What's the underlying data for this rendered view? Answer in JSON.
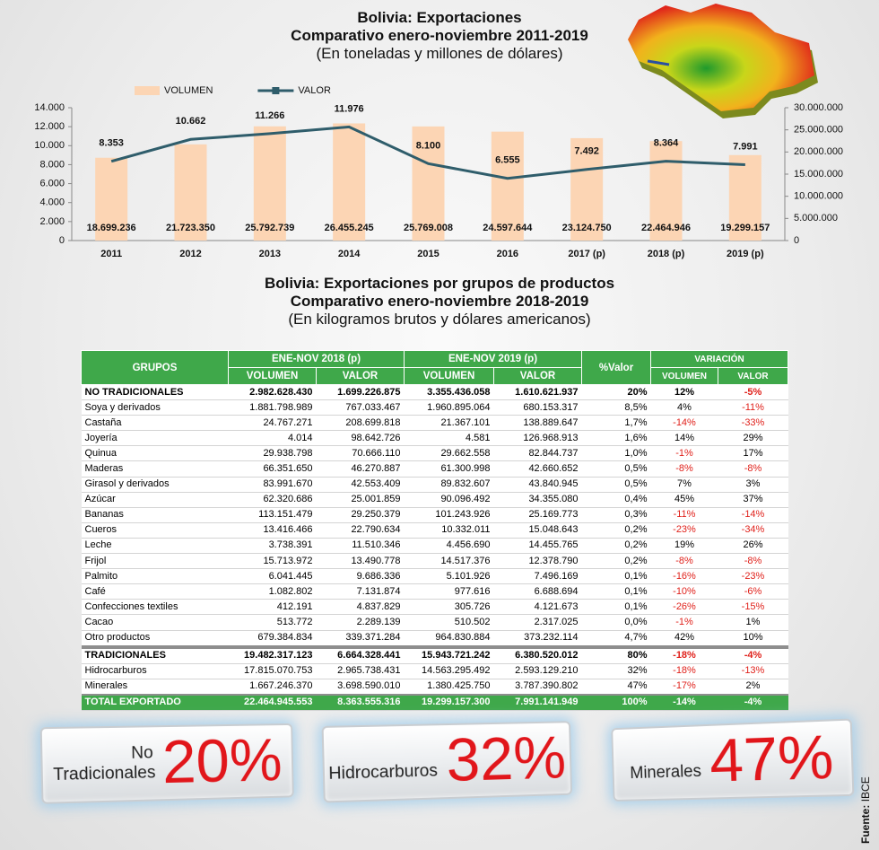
{
  "chart_data": {
    "type": "combo",
    "title": "Bolivia: Exportaciones",
    "subtitle": "Comparativo enero-noviembre 2011-2019",
    "note": "(En toneladas y millones de dólares)",
    "categories": [
      "2011",
      "2012",
      "2013",
      "2014",
      "2015",
      "2016",
      "2017 (p)",
      "2018 (p)",
      "2019 (p)"
    ],
    "series": [
      {
        "name": "VOLUMEN",
        "type": "bar",
        "axis": "y2",
        "color": "#fcd5b4",
        "values": [
          18699236,
          21723350,
          25792739,
          26455245,
          25769008,
          24597644,
          23124750,
          22464946,
          19299157
        ],
        "value_labels": [
          "18.699.236",
          "21.723.350",
          "25.792.739",
          "26.455.245",
          "25.769.008",
          "24.597.644",
          "23.124.750",
          "22.464.946",
          "19.299.157"
        ]
      },
      {
        "name": "VALOR",
        "type": "line",
        "color": "#2f5d6b",
        "values": [
          8353,
          10662,
          11266,
          11976,
          8100,
          6555,
          7492,
          8364,
          7991
        ],
        "value_labels": [
          "8.353",
          "10.662",
          "11.266",
          "11.976",
          "8.100",
          "6.555",
          "7.492",
          "8.364",
          "7.991"
        ]
      }
    ],
    "ylim": [
      0,
      14000
    ],
    "yticks": [
      0,
      {
        "value": 2000,
        "label": "2.000"
      },
      {
        "value": 4000,
        "label": "4.000"
      },
      {
        "value": 6000,
        "label": "6.000"
      },
      {
        "value": 8000,
        "label": "8.000"
      },
      {
        "value": 10000,
        "label": "10.000"
      },
      {
        "value": 12000,
        "label": "12.000"
      },
      {
        "value": 14000,
        "label": "14.000"
      }
    ],
    "y2lim": [
      0,
      30000000
    ],
    "y2ticks": [
      0,
      {
        "value": 5000000,
        "label": "5.000.000"
      },
      {
        "value": 10000000,
        "label": "10.000.000"
      },
      {
        "value": 15000000,
        "label": "15.000.000"
      },
      {
        "value": 20000000,
        "label": "20.000.000"
      },
      {
        "value": 25000000,
        "label": "25.000.000"
      },
      {
        "value": 30000000,
        "label": "30.000.000"
      }
    ],
    "legend": "top-left",
    "grid": false
  },
  "table": {
    "title": "Bolivia: Exportaciones por grupos de productos",
    "subtitle": "Comparativo enero-noviembre 2018-2019",
    "note": "(En kilogramos brutos y dólares americanos)",
    "columns": {
      "group": "GRUPOS",
      "y2018": "ENE-NOV 2018 (p)",
      "y2019": "ENE-NOV 2019 (p)",
      "share": "%Valor",
      "variation": "VARIACIÓN",
      "sub": [
        "VOLUMEN",
        "VALOR",
        "VOLUMEN",
        "VALOR",
        "VOLUMEN",
        "VALOR"
      ]
    },
    "groups": [
      {
        "total": [
          "NO TRADICIONALES",
          "2.982.628.430",
          "1.699.226.875",
          "3.355.436.058",
          "1.610.621.937",
          "20%",
          "12%",
          "-5%"
        ],
        "items": [
          [
            "Soya y derivados",
            "1.881.798.989",
            "767.033.467",
            "1.960.895.064",
            "680.153.317",
            "8,5%",
            "4%",
            "-11%"
          ],
          [
            "Castaña",
            "24.767.271",
            "208.699.818",
            "21.367.101",
            "138.889.647",
            "1,7%",
            "-14%",
            "-33%"
          ],
          [
            "Joyería",
            "4.014",
            "98.642.726",
            "4.581",
            "126.968.913",
            "1,6%",
            "14%",
            "29%"
          ],
          [
            "Quinua",
            "29.938.798",
            "70.666.110",
            "29.662.558",
            "82.844.737",
            "1,0%",
            "-1%",
            "17%"
          ],
          [
            "Maderas",
            "66.351.650",
            "46.270.887",
            "61.300.998",
            "42.660.652",
            "0,5%",
            "-8%",
            "-8%"
          ],
          [
            "Girasol y derivados",
            "83.991.670",
            "42.553.409",
            "89.832.607",
            "43.840.945",
            "0,5%",
            "7%",
            "3%"
          ],
          [
            "Azúcar",
            "62.320.686",
            "25.001.859",
            "90.096.492",
            "34.355.080",
            "0,4%",
            "45%",
            "37%"
          ],
          [
            "Bananas",
            "113.151.479",
            "29.250.379",
            "101.243.926",
            "25.169.773",
            "0,3%",
            "-11%",
            "-14%"
          ],
          [
            "Cueros",
            "13.416.466",
            "22.790.634",
            "10.332.011",
            "15.048.643",
            "0,2%",
            "-23%",
            "-34%"
          ],
          [
            "Leche",
            "3.738.391",
            "11.510.346",
            "4.456.690",
            "14.455.765",
            "0,2%",
            "19%",
            "26%"
          ],
          [
            "Frijol",
            "15.713.972",
            "13.490.778",
            "14.517.376",
            "12.378.790",
            "0,2%",
            "-8%",
            "-8%"
          ],
          [
            "Palmito",
            "6.041.445",
            "9.686.336",
            "5.101.926",
            "7.496.169",
            "0,1%",
            "-16%",
            "-23%"
          ],
          [
            "Café",
            "1.082.802",
            "7.131.874",
            "977.616",
            "6.688.694",
            "0,1%",
            "-10%",
            "-6%"
          ],
          [
            "Confecciones textiles",
            "412.191",
            "4.837.829",
            "305.726",
            "4.121.673",
            "0,1%",
            "-26%",
            "-15%"
          ],
          [
            "Cacao",
            "513.772",
            "2.289.139",
            "510.502",
            "2.317.025",
            "0,0%",
            "-1%",
            "1%"
          ],
          [
            "Otro productos",
            "679.384.834",
            "339.371.284",
            "964.830.884",
            "373.232.114",
            "4,7%",
            "42%",
            "10%"
          ]
        ]
      },
      {
        "total": [
          "TRADICIONALES",
          "19.482.317.123",
          "6.664.328.441",
          "15.943.721.242",
          "6.380.520.012",
          "80%",
          "-18%",
          "-4%"
        ],
        "items": [
          [
            "Hidrocarburos",
            "17.815.070.753",
            "2.965.738.431",
            "14.563.295.492",
            "2.593.129.210",
            "32%",
            "-18%",
            "-13%"
          ],
          [
            "Minerales",
            "1.667.246.370",
            "3.698.590.010",
            "1.380.425.750",
            "3.787.390.802",
            "47%",
            "-17%",
            "2%"
          ]
        ]
      }
    ],
    "total": [
      "TOTAL EXPORTADO",
      "22.464.945.553",
      "8.363.555.316",
      "19.299.157.300",
      "7.991.141.949",
      "100%",
      "-14%",
      "-4%"
    ]
  },
  "highlights": [
    {
      "label": "No Tradicionales",
      "value": "20%"
    },
    {
      "label": "Hidrocarburos",
      "value": "32%"
    },
    {
      "label": "Minerales",
      "value": "47%"
    }
  ],
  "source_label": "Fuente:",
  "source": "IBCE"
}
